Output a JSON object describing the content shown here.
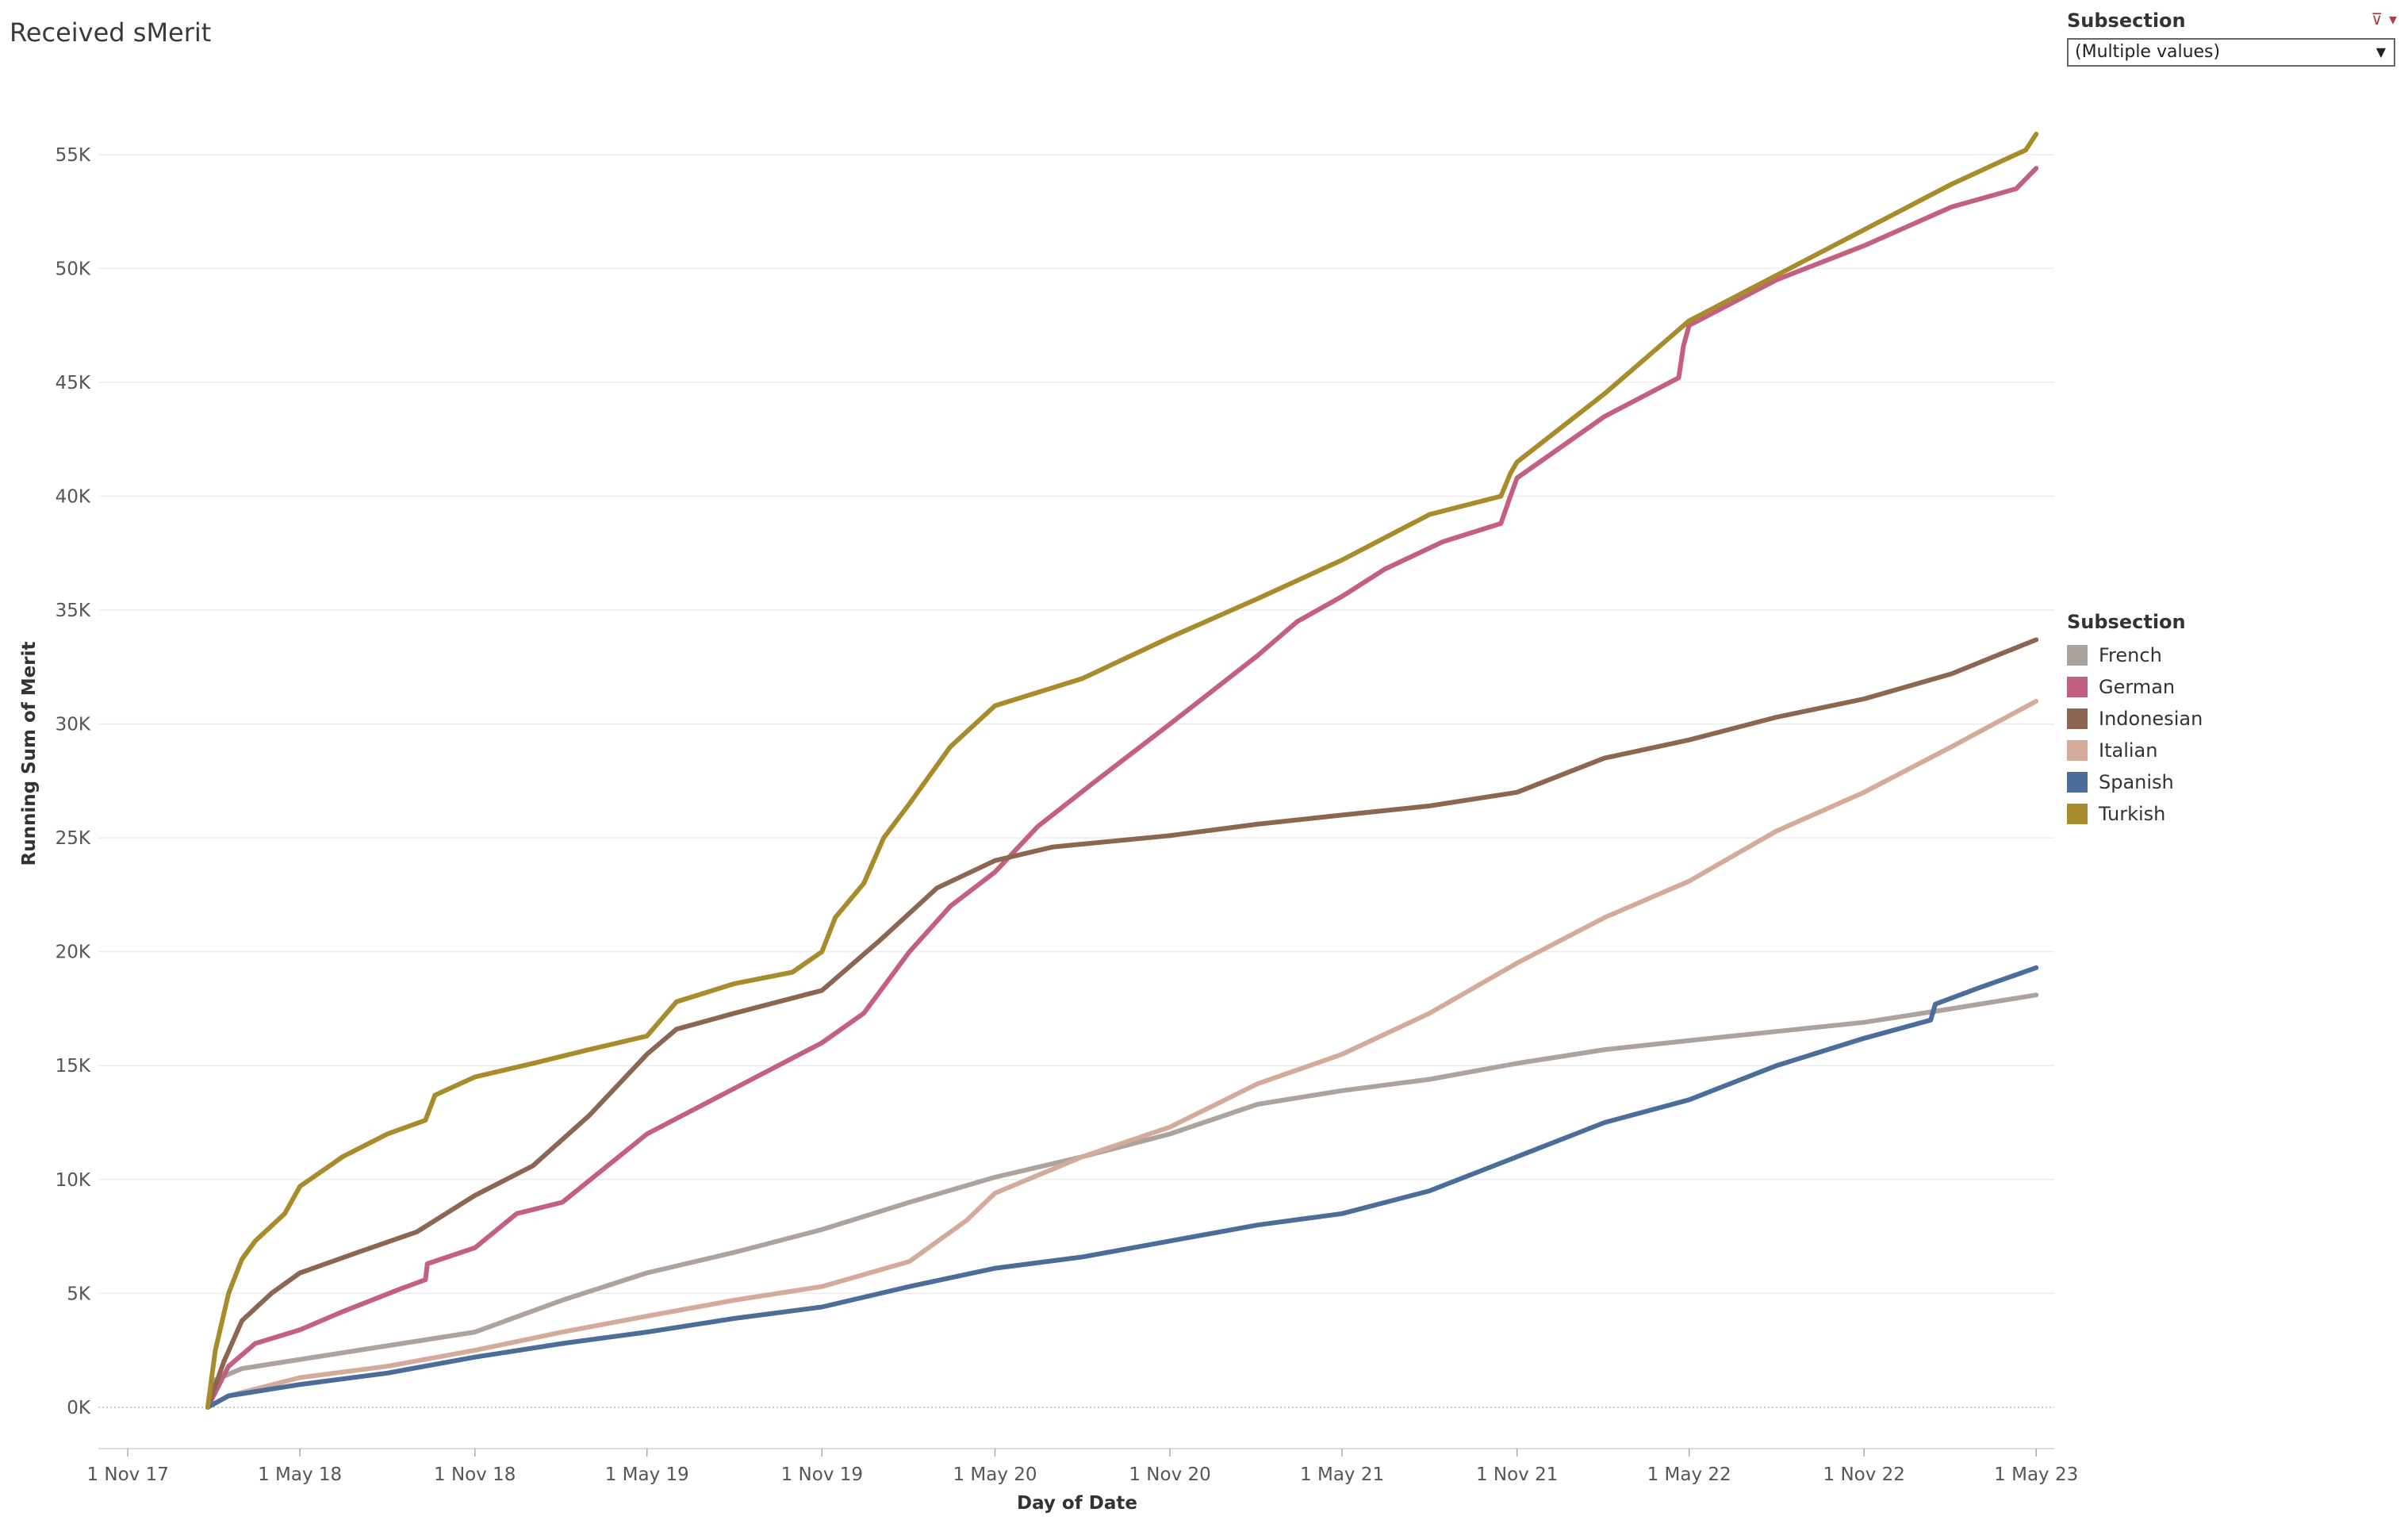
{
  "title": "Received sMerit",
  "filter": {
    "label": "Subsection",
    "value": "(Multiple values)"
  },
  "legend": {
    "title": "Subsection",
    "items": [
      {
        "label": "French",
        "color": "#aca29e"
      },
      {
        "label": "German",
        "color": "#c4607f"
      },
      {
        "label": "Indonesian",
        "color": "#8c6651"
      },
      {
        "label": "Italian",
        "color": "#d4ab9b"
      },
      {
        "label": "Spanish",
        "color": "#4a6d9a"
      },
      {
        "label": "Turkish",
        "color": "#a88c2b"
      }
    ]
  },
  "chart_data": {
    "type": "line",
    "title": "Received sMerit",
    "xlabel": "Day of Date",
    "ylabel": "Running Sum of Merit",
    "xlim": [
      "2017-10-01",
      "2023-05-20"
    ],
    "ylim": [
      -3000,
      59000
    ],
    "grid": true,
    "legend_position": "right",
    "x_ticks": [
      {
        "date": "2017-11-01",
        "label": "1 Nov 17"
      },
      {
        "date": "2018-05-01",
        "label": "1 May 18"
      },
      {
        "date": "2018-11-01",
        "label": "1 Nov 18"
      },
      {
        "date": "2019-05-01",
        "label": "1 May 19"
      },
      {
        "date": "2019-11-01",
        "label": "1 Nov 19"
      },
      {
        "date": "2020-05-01",
        "label": "1 May 20"
      },
      {
        "date": "2020-11-01",
        "label": "1 Nov 20"
      },
      {
        "date": "2021-05-01",
        "label": "1 May 21"
      },
      {
        "date": "2021-11-01",
        "label": "1 Nov 21"
      },
      {
        "date": "2022-05-01",
        "label": "1 May 22"
      },
      {
        "date": "2022-11-01",
        "label": "1 Nov 22"
      },
      {
        "date": "2023-05-01",
        "label": "1 May 23"
      }
    ],
    "y_ticks": [
      {
        "value": 0,
        "label": "0K"
      },
      {
        "value": 5000,
        "label": "5K"
      },
      {
        "value": 10000,
        "label": "10K"
      },
      {
        "value": 15000,
        "label": "15K"
      },
      {
        "value": 20000,
        "label": "20K"
      },
      {
        "value": 25000,
        "label": "25K"
      },
      {
        "value": 30000,
        "label": "30K"
      },
      {
        "value": 35000,
        "label": "35K"
      },
      {
        "value": 40000,
        "label": "40K"
      },
      {
        "value": 45000,
        "label": "45K"
      },
      {
        "value": 50000,
        "label": "50K"
      },
      {
        "value": 55000,
        "label": "55K"
      }
    ],
    "series": [
      {
        "name": "French",
        "color": "#aca29e",
        "points": [
          [
            "2018-01-24",
            0
          ],
          [
            "2018-02-01",
            1200
          ],
          [
            "2018-03-01",
            1700
          ],
          [
            "2018-05-01",
            2100
          ],
          [
            "2018-08-01",
            2700
          ],
          [
            "2018-11-01",
            3300
          ],
          [
            "2019-02-01",
            4700
          ],
          [
            "2019-05-01",
            5900
          ],
          [
            "2019-08-01",
            6800
          ],
          [
            "2019-11-01",
            7800
          ],
          [
            "2020-02-01",
            9000
          ],
          [
            "2020-05-01",
            10100
          ],
          [
            "2020-08-01",
            11000
          ],
          [
            "2020-11-01",
            12000
          ],
          [
            "2021-02-01",
            13300
          ],
          [
            "2021-05-01",
            13900
          ],
          [
            "2021-08-01",
            14400
          ],
          [
            "2021-11-01",
            15100
          ],
          [
            "2022-02-01",
            15700
          ],
          [
            "2022-05-01",
            16100
          ],
          [
            "2022-08-01",
            16500
          ],
          [
            "2022-11-01",
            16900
          ],
          [
            "2023-02-01",
            17500
          ],
          [
            "2023-05-01",
            18100
          ]
        ]
      },
      {
        "name": "German",
        "color": "#c4607f",
        "points": [
          [
            "2018-01-24",
            0
          ],
          [
            "2018-02-15",
            1800
          ],
          [
            "2018-03-15",
            2800
          ],
          [
            "2018-05-01",
            3400
          ],
          [
            "2018-06-15",
            4200
          ],
          [
            "2018-08-15",
            5200
          ],
          [
            "2018-09-10",
            5600
          ],
          [
            "2018-09-12",
            6300
          ],
          [
            "2018-11-01",
            7000
          ],
          [
            "2018-12-15",
            8500
          ],
          [
            "2019-02-01",
            9000
          ],
          [
            "2019-05-01",
            12000
          ],
          [
            "2019-08-01",
            14000
          ],
          [
            "2019-11-01",
            16000
          ],
          [
            "2019-12-15",
            17300
          ],
          [
            "2020-02-01",
            20000
          ],
          [
            "2020-03-15",
            22000
          ],
          [
            "2020-05-01",
            23500
          ],
          [
            "2020-06-15",
            25500
          ],
          [
            "2020-08-15",
            27500
          ],
          [
            "2020-11-01",
            30000
          ],
          [
            "2021-02-01",
            33000
          ],
          [
            "2021-03-15",
            34500
          ],
          [
            "2021-05-01",
            35600
          ],
          [
            "2021-06-15",
            36800
          ],
          [
            "2021-08-15",
            38000
          ],
          [
            "2021-10-15",
            38800
          ],
          [
            "2021-10-25",
            40000
          ],
          [
            "2021-11-01",
            40800
          ],
          [
            "2022-02-01",
            43500
          ],
          [
            "2022-04-20",
            45200
          ],
          [
            "2022-04-25",
            46600
          ],
          [
            "2022-05-01",
            47500
          ],
          [
            "2022-08-01",
            49500
          ],
          [
            "2022-11-01",
            51000
          ],
          [
            "2023-02-01",
            52700
          ],
          [
            "2023-04-10",
            53500
          ],
          [
            "2023-05-01",
            54400
          ]
        ]
      },
      {
        "name": "Indonesian",
        "color": "#8c6651",
        "points": [
          [
            "2018-01-24",
            0
          ],
          [
            "2018-02-10",
            2000
          ],
          [
            "2018-03-01",
            3800
          ],
          [
            "2018-04-01",
            5000
          ],
          [
            "2018-05-01",
            5900
          ],
          [
            "2018-07-01",
            6800
          ],
          [
            "2018-09-01",
            7700
          ],
          [
            "2018-11-01",
            9300
          ],
          [
            "2019-01-01",
            10600
          ],
          [
            "2019-03-01",
            12800
          ],
          [
            "2019-05-01",
            15500
          ],
          [
            "2019-06-01",
            16600
          ],
          [
            "2019-08-01",
            17300
          ],
          [
            "2019-11-01",
            18300
          ],
          [
            "2020-01-01",
            20500
          ],
          [
            "2020-03-01",
            22800
          ],
          [
            "2020-05-01",
            24000
          ],
          [
            "2020-07-01",
            24600
          ],
          [
            "2020-11-01",
            25100
          ],
          [
            "2021-02-01",
            25600
          ],
          [
            "2021-05-01",
            26000
          ],
          [
            "2021-08-01",
            26400
          ],
          [
            "2021-11-01",
            27000
          ],
          [
            "2022-02-01",
            28500
          ],
          [
            "2022-05-01",
            29300
          ],
          [
            "2022-08-01",
            30300
          ],
          [
            "2022-11-01",
            31100
          ],
          [
            "2023-02-01",
            32200
          ],
          [
            "2023-03-20",
            33000
          ],
          [
            "2023-05-01",
            33700
          ]
        ]
      },
      {
        "name": "Italian",
        "color": "#d4ab9b",
        "points": [
          [
            "2018-01-24",
            0
          ],
          [
            "2018-02-15",
            500
          ],
          [
            "2018-05-01",
            1300
          ],
          [
            "2018-08-01",
            1800
          ],
          [
            "2018-11-01",
            2500
          ],
          [
            "2019-02-01",
            3300
          ],
          [
            "2019-05-01",
            4000
          ],
          [
            "2019-08-01",
            4700
          ],
          [
            "2019-11-01",
            5300
          ],
          [
            "2020-02-01",
            6400
          ],
          [
            "2020-04-01",
            8200
          ],
          [
            "2020-05-01",
            9400
          ],
          [
            "2020-08-01",
            11000
          ],
          [
            "2020-11-01",
            12300
          ],
          [
            "2021-02-01",
            14200
          ],
          [
            "2021-05-01",
            15500
          ],
          [
            "2021-08-01",
            17300
          ],
          [
            "2021-11-01",
            19500
          ],
          [
            "2022-02-01",
            21500
          ],
          [
            "2022-05-01",
            23100
          ],
          [
            "2022-08-01",
            25300
          ],
          [
            "2022-11-01",
            27000
          ],
          [
            "2023-02-01",
            29000
          ],
          [
            "2023-05-01",
            31000
          ]
        ]
      },
      {
        "name": "Spanish",
        "color": "#4a6d9a",
        "points": [
          [
            "2018-01-24",
            0
          ],
          [
            "2018-02-15",
            500
          ],
          [
            "2018-05-01",
            1000
          ],
          [
            "2018-08-01",
            1500
          ],
          [
            "2018-11-01",
            2200
          ],
          [
            "2019-02-01",
            2800
          ],
          [
            "2019-05-01",
            3300
          ],
          [
            "2019-08-01",
            3900
          ],
          [
            "2019-11-01",
            4400
          ],
          [
            "2020-02-01",
            5300
          ],
          [
            "2020-05-01",
            6100
          ],
          [
            "2020-08-01",
            6600
          ],
          [
            "2020-11-01",
            7300
          ],
          [
            "2021-02-01",
            8000
          ],
          [
            "2021-05-01",
            8500
          ],
          [
            "2021-08-01",
            9500
          ],
          [
            "2021-11-01",
            11000
          ],
          [
            "2022-02-01",
            12500
          ],
          [
            "2022-05-01",
            13500
          ],
          [
            "2022-08-01",
            15000
          ],
          [
            "2022-11-01",
            16200
          ],
          [
            "2023-01-10",
            17000
          ],
          [
            "2023-01-15",
            17700
          ],
          [
            "2023-03-01",
            18400
          ],
          [
            "2023-05-01",
            19300
          ]
        ]
      },
      {
        "name": "Turkish",
        "color": "#a88c2b",
        "points": [
          [
            "2018-01-24",
            0
          ],
          [
            "2018-02-01",
            2500
          ],
          [
            "2018-02-15",
            5000
          ],
          [
            "2018-03-01",
            6500
          ],
          [
            "2018-03-15",
            7300
          ],
          [
            "2018-04-15",
            8500
          ],
          [
            "2018-05-01",
            9700
          ],
          [
            "2018-06-15",
            11000
          ],
          [
            "2018-08-01",
            12000
          ],
          [
            "2018-09-10",
            12600
          ],
          [
            "2018-09-20",
            13700
          ],
          [
            "2018-11-01",
            14500
          ],
          [
            "2019-01-01",
            15100
          ],
          [
            "2019-03-01",
            15700
          ],
          [
            "2019-05-01",
            16300
          ],
          [
            "2019-06-01",
            17800
          ],
          [
            "2019-08-01",
            18600
          ],
          [
            "2019-10-01",
            19100
          ],
          [
            "2019-11-01",
            20000
          ],
          [
            "2019-11-15",
            21500
          ],
          [
            "2019-12-15",
            23000
          ],
          [
            "2020-01-05",
            25000
          ],
          [
            "2020-02-01",
            26500
          ],
          [
            "2020-03-15",
            29000
          ],
          [
            "2020-05-01",
            30800
          ],
          [
            "2020-08-01",
            32000
          ],
          [
            "2020-11-01",
            33800
          ],
          [
            "2021-02-01",
            35500
          ],
          [
            "2021-05-01",
            37200
          ],
          [
            "2021-08-01",
            39200
          ],
          [
            "2021-10-15",
            40000
          ],
          [
            "2021-10-25",
            41000
          ],
          [
            "2021-11-01",
            41500
          ],
          [
            "2022-02-01",
            44500
          ],
          [
            "2022-05-01",
            47700
          ],
          [
            "2022-08-01",
            49700
          ],
          [
            "2022-11-01",
            51700
          ],
          [
            "2023-02-01",
            53700
          ],
          [
            "2023-04-20",
            55200
          ],
          [
            "2023-05-01",
            55900
          ]
        ]
      }
    ]
  }
}
